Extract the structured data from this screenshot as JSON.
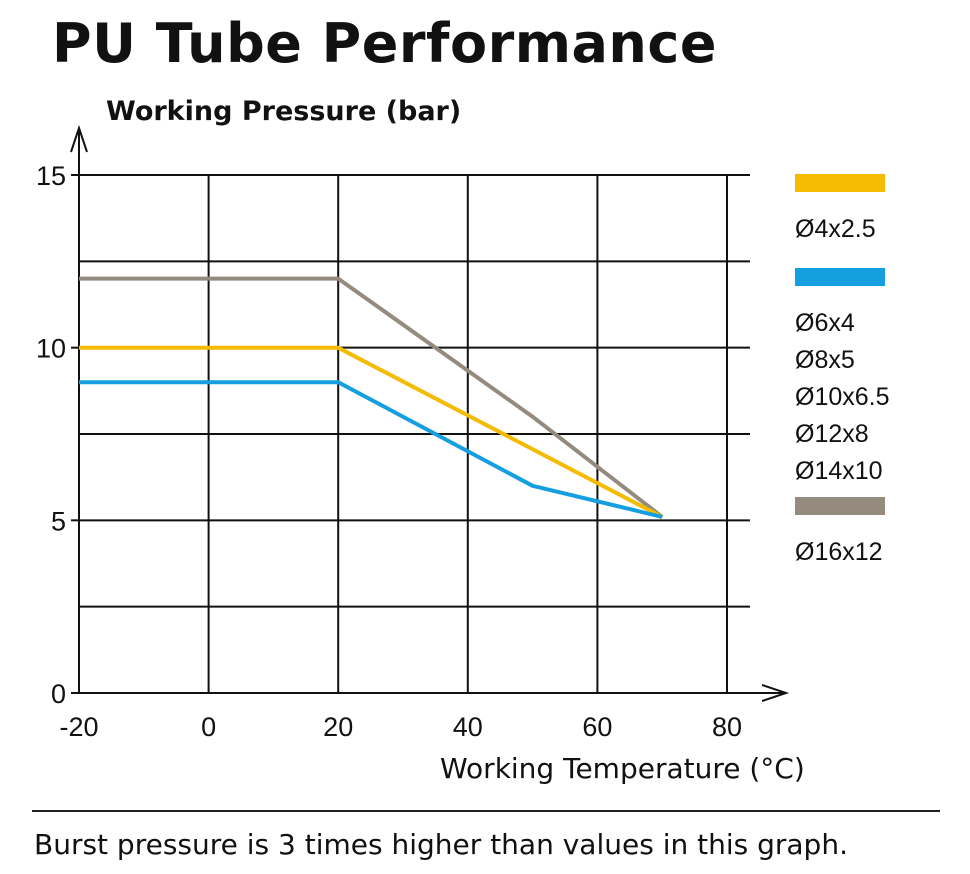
{
  "title": "PU Tube Performance",
  "note": "Burst pressure is 3 times higher than values in this graph.",
  "chart_data": {
    "type": "line",
    "ylabel": "Working Pressure (bar)",
    "xlabel": "Working Temperature (°C)",
    "xlim": [
      -20,
      80
    ],
    "ylim": [
      0,
      15
    ],
    "x_ticks": [
      -20,
      0,
      20,
      40,
      60,
      80
    ],
    "y_ticks": [
      0,
      5,
      10,
      15
    ],
    "grid": true,
    "legend_position": "right",
    "series": [
      {
        "id": "gray",
        "color": "#948a7e",
        "labels": [
          "Ø16x12"
        ],
        "points": [
          [
            -20,
            12
          ],
          [
            20,
            12
          ],
          [
            50,
            8
          ],
          [
            70,
            5.1
          ]
        ]
      },
      {
        "id": "yellow",
        "color": "#f5bb00",
        "labels": [
          "Ø4x2.5"
        ],
        "points": [
          [
            -20,
            10
          ],
          [
            20,
            10
          ],
          [
            70,
            5.1
          ]
        ]
      },
      {
        "id": "blue",
        "color": "#159fe0",
        "labels": [
          "Ø6x4",
          "Ø8x5",
          "Ø10x6.5",
          "Ø12x8",
          "Ø14x10"
        ],
        "points": [
          [
            -20,
            9
          ],
          [
            20,
            9
          ],
          [
            50,
            6
          ],
          [
            70,
            5.1
          ]
        ]
      }
    ],
    "legend_order": [
      "yellow",
      "blue",
      "gray"
    ]
  }
}
